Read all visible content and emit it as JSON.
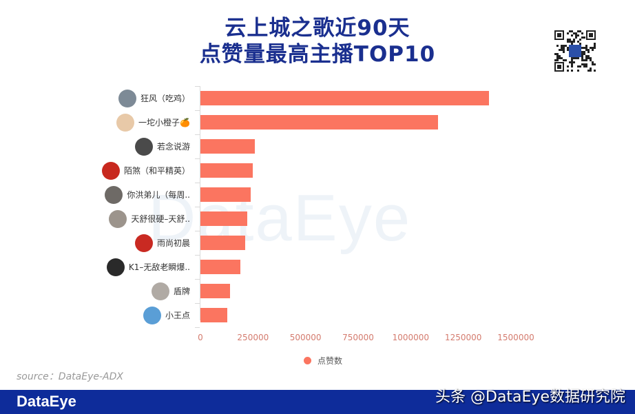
{
  "title": {
    "line1": "云上城之歌近90天",
    "line2": "点赞量最高主播TOP10"
  },
  "watermark": "DataEye",
  "qr_code": {
    "icon": "qr-code-icon"
  },
  "chart_data": {
    "type": "bar",
    "orientation": "horizontal",
    "title": "云上城之歌近90天点赞量最高主播TOP10",
    "categories": [
      "狂风（吃鸡）",
      "一坨小橙子🍊",
      "若念说游",
      "陌煞（和平精英）",
      "你洪弟儿（每周..",
      "天舒很硬–天舒..",
      "雨尚初晨",
      "K1–无敌老瞬爆..",
      "盾牌",
      "小王点"
    ],
    "series": [
      {
        "name": "点赞数",
        "color": "#fb7560",
        "values": [
          1372000,
          1129000,
          260000,
          250000,
          240000,
          224000,
          214000,
          190000,
          142000,
          128000
        ]
      }
    ],
    "xlabel": "",
    "ylabel": "",
    "xticks": [
      "0",
      "250000",
      "500000",
      "750000",
      "1000000",
      "1250000",
      "1500000"
    ],
    "xlim": [
      0,
      1500000
    ],
    "grid": false,
    "legend": {
      "position": "bottom",
      "entries": [
        "点赞数"
      ]
    }
  },
  "rows": [
    {
      "label": "狂风（吃鸡）",
      "avatar_color": "#7d8a96"
    },
    {
      "label": "一坨小橙子🍊",
      "avatar_color": "#e8c9a8"
    },
    {
      "label": "若念说游",
      "avatar_color": "#4a4a4a"
    },
    {
      "label": "陌煞（和平精英）",
      "avatar_color": "#c8281e"
    },
    {
      "label": "你洪弟儿（每周..",
      "avatar_color": "#6e6a66"
    },
    {
      "label": "天舒很硬–天舒..",
      "avatar_color": "#9c948c"
    },
    {
      "label": "雨尚初晨",
      "avatar_color": "#c92a22"
    },
    {
      "label": "K1–无敌老瞬爆..",
      "avatar_color": "#2a2a2a"
    },
    {
      "label": "盾牌",
      "avatar_color": "#b0aaa4"
    },
    {
      "label": "小王点",
      "avatar_color": "#5a9ed6"
    }
  ],
  "legend_label": "点赞数",
  "source": "source：DataEye-ADX",
  "footer": {
    "brand": "DataEye",
    "credit": "头条 @DataEye数据研究院"
  }
}
